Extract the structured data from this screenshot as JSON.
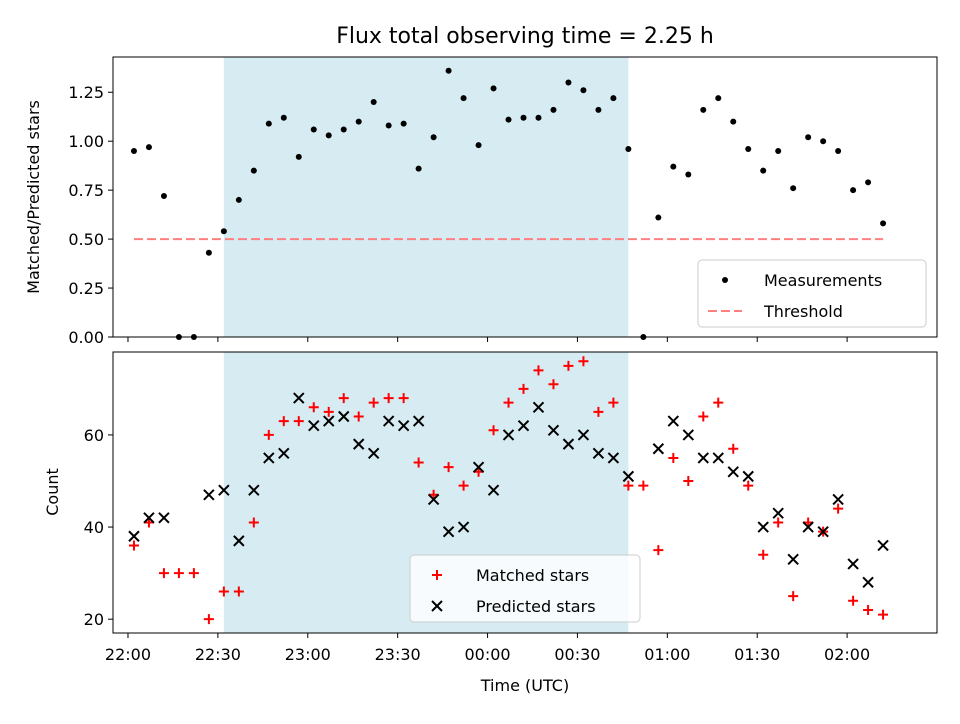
{
  "title": "Flux total observing time = 2.25 h",
  "colors": {
    "shade": "#add8e6",
    "measurements": "#000000",
    "threshold": "#ff8080",
    "matched": "#ff0000",
    "predicted": "#000000"
  },
  "chart_data": [
    {
      "type": "scatter",
      "title": "Flux total observing time = 2.25 h",
      "xlabel": "",
      "ylabel": "Matched/Predicted stars",
      "xlim": [
        "21:55",
        "02:30"
      ],
      "ylim": [
        0,
        1.43
      ],
      "yticks": [
        0.0,
        0.25,
        0.5,
        0.75,
        1.0,
        1.25
      ],
      "ytick_labels": [
        "0.00",
        "0.25",
        "0.50",
        "0.75",
        "1.00",
        "1.25"
      ],
      "shaded_region": [
        "22:32",
        "00:47"
      ],
      "legend": {
        "position": "lower right",
        "entries": [
          "Measurements",
          "Threshold"
        ]
      },
      "series": [
        {
          "name": "Measurements",
          "marker": "dot",
          "x": [
            "22:02",
            "22:07",
            "22:12",
            "22:17",
            "22:22",
            "22:27",
            "22:32",
            "22:37",
            "22:42",
            "22:47",
            "22:52",
            "22:57",
            "23:02",
            "23:07",
            "23:12",
            "23:17",
            "23:22",
            "23:27",
            "23:32",
            "23:37",
            "23:42",
            "23:47",
            "23:52",
            "23:57",
            "00:02",
            "00:07",
            "00:12",
            "00:17",
            "00:22",
            "00:27",
            "00:32",
            "00:37",
            "00:42",
            "00:47",
            "00:52",
            "00:57",
            "01:02",
            "01:07",
            "01:12",
            "01:17",
            "01:22",
            "01:27",
            "01:32",
            "01:37",
            "01:42",
            "01:47",
            "01:52",
            "01:57",
            "02:02",
            "02:07",
            "02:12"
          ],
          "y": [
            0.95,
            0.97,
            0.72,
            0.0,
            0.0,
            0.43,
            0.54,
            0.7,
            0.85,
            1.09,
            1.12,
            0.92,
            1.06,
            1.03,
            1.06,
            1.1,
            1.2,
            1.08,
            1.09,
            0.86,
            1.02,
            1.36,
            1.22,
            0.98,
            1.27,
            1.11,
            1.12,
            1.12,
            1.16,
            1.3,
            1.26,
            1.16,
            1.22,
            0.96,
            0.0,
            0.61,
            0.87,
            0.83,
            1.16,
            1.22,
            1.1,
            0.96,
            0.85,
            0.95,
            0.76,
            1.02,
            1.0,
            0.95,
            0.75,
            0.79,
            0.58
          ]
        },
        {
          "name": "Threshold",
          "style": "dashed",
          "x": [
            "22:02",
            "02:12"
          ],
          "y": [
            0.5,
            0.5
          ]
        }
      ]
    },
    {
      "type": "scatter",
      "title": "",
      "xlabel": "Time (UTC)",
      "ylabel": "Count",
      "xlim": [
        "21:55",
        "02:30"
      ],
      "ylim": [
        17,
        78
      ],
      "yticks": [
        20,
        40,
        60
      ],
      "xticks": [
        "22:00",
        "22:30",
        "23:00",
        "23:30",
        "00:00",
        "00:30",
        "01:00",
        "01:30",
        "02:00"
      ],
      "shaded_region": [
        "22:32",
        "00:47"
      ],
      "legend": {
        "position": "lower center",
        "entries": [
          "Matched stars",
          "Predicted stars"
        ]
      },
      "series": [
        {
          "name": "Matched stars",
          "marker": "plus",
          "x": [
            "22:02",
            "22:07",
            "22:12",
            "22:17",
            "22:22",
            "22:27",
            "22:32",
            "22:37",
            "22:42",
            "22:47",
            "22:52",
            "22:57",
            "23:02",
            "23:07",
            "23:12",
            "23:17",
            "23:22",
            "23:27",
            "23:32",
            "23:37",
            "23:42",
            "23:47",
            "23:52",
            "23:57",
            "00:02",
            "00:07",
            "00:12",
            "00:17",
            "00:22",
            "00:27",
            "00:32",
            "00:37",
            "00:42",
            "00:47",
            "00:52",
            "00:57",
            "01:02",
            "01:07",
            "01:12",
            "01:17",
            "01:22",
            "01:27",
            "01:32",
            "01:37",
            "01:42",
            "01:47",
            "01:52",
            "01:57",
            "02:02",
            "02:07",
            "02:12"
          ],
          "y": [
            36,
            41,
            30,
            30,
            30,
            20,
            26,
            26,
            41,
            60,
            63,
            63,
            66,
            65,
            68,
            64,
            67,
            68,
            68,
            54,
            47,
            53,
            49,
            52,
            61,
            67,
            70,
            74,
            71,
            75,
            76,
            65,
            67,
            49,
            49,
            35,
            55,
            50,
            64,
            67,
            57,
            49,
            34,
            41,
            25,
            41,
            39,
            44,
            24,
            22,
            21
          ]
        },
        {
          "name": "Predicted stars",
          "marker": "x",
          "x": [
            "22:02",
            "22:07",
            "22:12",
            "22:27",
            "22:32",
            "22:37",
            "22:42",
            "22:47",
            "22:52",
            "22:57",
            "23:02",
            "23:07",
            "23:12",
            "23:17",
            "23:22",
            "23:27",
            "23:32",
            "23:37",
            "23:42",
            "23:47",
            "23:52",
            "23:57",
            "00:02",
            "00:07",
            "00:12",
            "00:17",
            "00:22",
            "00:27",
            "00:32",
            "00:37",
            "00:42",
            "00:47",
            "00:57",
            "01:02",
            "01:07",
            "01:12",
            "01:17",
            "01:22",
            "01:27",
            "01:32",
            "01:37",
            "01:42",
            "01:47",
            "01:52",
            "01:57",
            "02:02",
            "02:07",
            "02:12"
          ],
          "y": [
            38,
            42,
            42,
            47,
            48,
            37,
            48,
            55,
            56,
            68,
            62,
            63,
            64,
            58,
            56,
            63,
            62,
            63,
            46,
            39,
            40,
            53,
            48,
            60,
            62,
            66,
            61,
            58,
            60,
            56,
            55,
            51,
            57,
            63,
            60,
            55,
            55,
            52,
            51,
            40,
            43,
            33,
            40,
            39,
            46,
            32,
            28,
            36
          ]
        }
      ]
    }
  ]
}
